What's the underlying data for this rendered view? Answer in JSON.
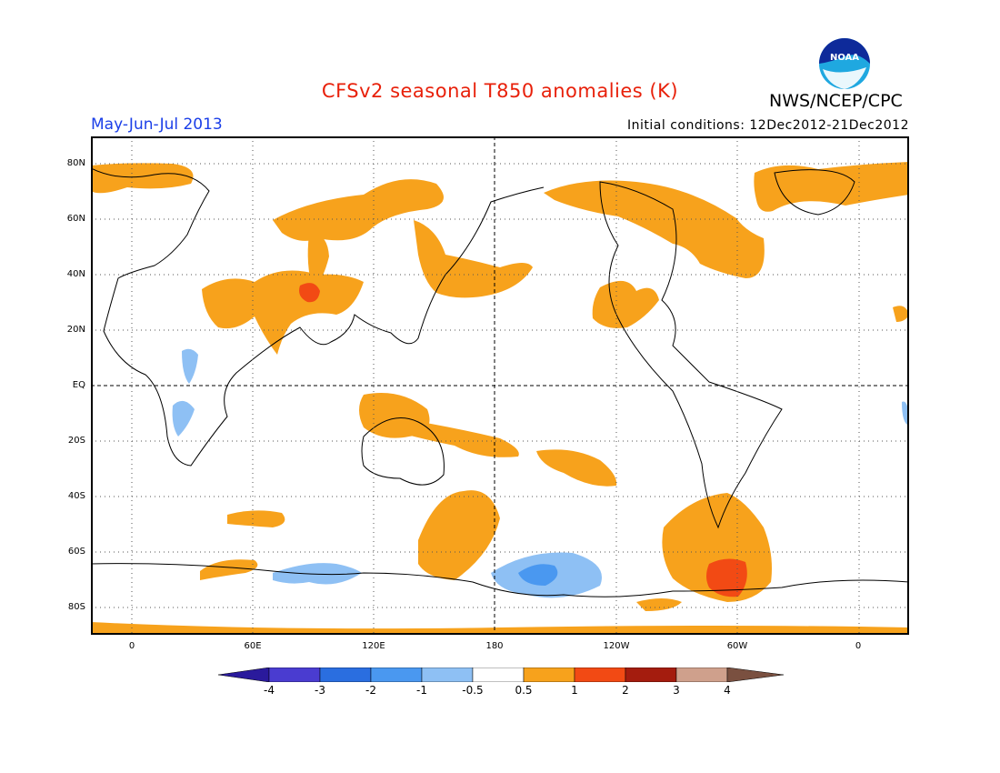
{
  "header": {
    "title": "CFSv2 seasonal T850 anomalies (K)",
    "agency": "NWS/NCEP/CPC",
    "season": "May-Jun-Jul 2013",
    "initial_conditions": "Initial conditions: 12Dec2012-21Dec2012",
    "logo_text": "NOAA"
  },
  "map": {
    "lat_labels": [
      "80N",
      "60N",
      "40N",
      "20N",
      "EQ",
      "20S",
      "40S",
      "60S",
      "80S"
    ],
    "lon_labels": [
      "0",
      "60E",
      "120E",
      "180",
      "120W",
      "60W",
      "0"
    ]
  },
  "legend": {
    "labels": [
      "-4",
      "-3",
      "-2",
      "-1",
      "-0.5",
      "0.5",
      "1",
      "2",
      "3",
      "4"
    ],
    "colors": [
      "#2a1a9c",
      "#4a3cd0",
      "#2a6ee0",
      "#4a98f0",
      "#8ec0f4",
      "#ffffff",
      "#f7a21c",
      "#f24a14",
      "#a41c0e",
      "#cfa08c",
      "#7a5040"
    ]
  }
}
